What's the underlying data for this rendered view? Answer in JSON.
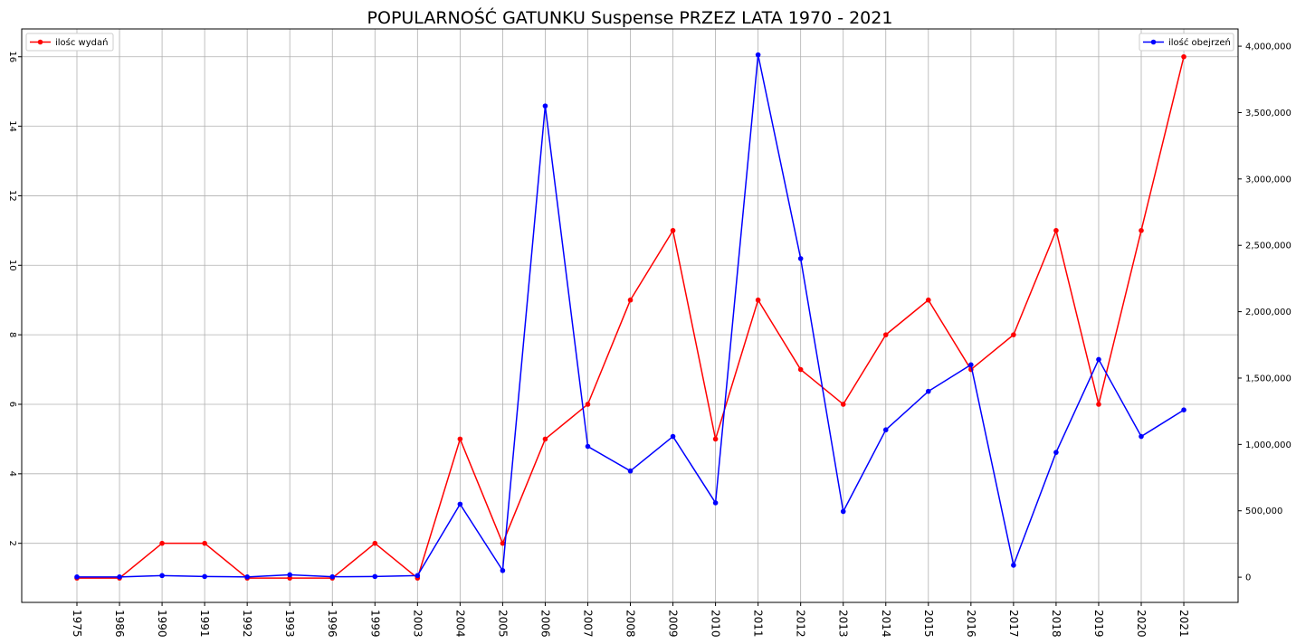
{
  "chart_data": {
    "type": "line",
    "title": "POPULARNOŚĆ GATUNKU Suspense PRZEZ LATA 1970 - 2021",
    "categories": [
      "1975",
      "1986",
      "1990",
      "1991",
      "1992",
      "1993",
      "1996",
      "1999",
      "2003",
      "2004",
      "2005",
      "2006",
      "2007",
      "2008",
      "2009",
      "2010",
      "2011",
      "2012",
      "2013",
      "2014",
      "2015",
      "2016",
      "2017",
      "2018",
      "2019",
      "2020",
      "2021"
    ],
    "series": [
      {
        "name": "ilośc wydań",
        "axis": "left",
        "color": "#ff0000",
        "values": [
          1,
          1,
          2,
          2,
          1,
          1,
          1,
          2,
          1,
          5,
          2,
          5,
          6,
          9,
          11,
          5,
          9,
          7,
          6,
          8,
          9,
          7,
          8,
          11,
          6,
          11,
          16
        ]
      },
      {
        "name": "ilość obejrzeń",
        "axis": "right",
        "color": "#0000ff",
        "values": [
          2000,
          2000,
          12000,
          5000,
          2000,
          18000,
          3000,
          5000,
          12000,
          550000,
          50000,
          3550000,
          985000,
          800000,
          1060000,
          560000,
          3935000,
          2400000,
          495000,
          1110000,
          1400000,
          1600000,
          90000,
          940000,
          1640000,
          1060000,
          1260000
        ]
      }
    ],
    "yleft": {
      "ylim": [
        0.3,
        16.8
      ],
      "ticks": [
        2,
        4,
        6,
        8,
        10,
        12,
        14,
        16
      ]
    },
    "yright": {
      "ylim": [
        -190000,
        4130000
      ],
      "ticks": [
        0,
        500000,
        1000000,
        1500000,
        2000000,
        2500000,
        3000000,
        3500000,
        4000000
      ],
      "tick_labels": [
        "0",
        "500,000",
        "1,000,000",
        "1,500,000",
        "2,000,000",
        "2,500,000",
        "3,000,000",
        "3,500,000",
        "4,000,000"
      ]
    },
    "grid": true,
    "legend_left": "top-left",
    "legend_right": "top-right"
  }
}
